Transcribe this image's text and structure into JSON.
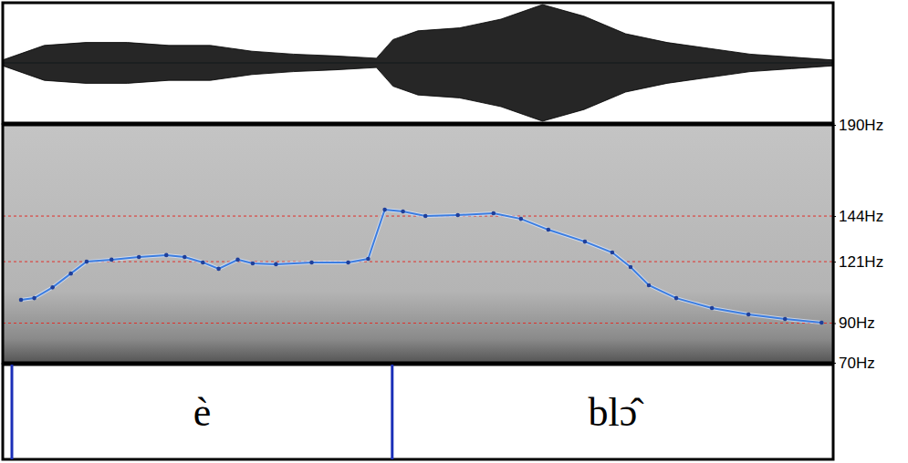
{
  "chart_data": [
    {
      "type": "area",
      "x": [
        0,
        0.05,
        0.1,
        0.15,
        0.2,
        0.25,
        0.3,
        0.35,
        0.4,
        0.45,
        0.47,
        0.5,
        0.55,
        0.6,
        0.65,
        0.7,
        0.75,
        0.8,
        0.85,
        0.9,
        0.95,
        1.0
      ],
      "values": [
        0.05,
        0.3,
        0.35,
        0.35,
        0.3,
        0.3,
        0.2,
        0.15,
        0.12,
        0.08,
        0.4,
        0.55,
        0.6,
        0.75,
        1.0,
        0.8,
        0.5,
        0.35,
        0.25,
        0.15,
        0.1,
        0.05
      ],
      "color": "#000000",
      "xlim": [
        0,
        1
      ],
      "ylim": [
        -1,
        1
      ],
      "tick_labels": false
    },
    {
      "type": "line",
      "x": [
        0.022,
        0.038,
        0.06,
        0.082,
        0.101,
        0.131,
        0.164,
        0.197,
        0.219,
        0.241,
        0.26,
        0.283,
        0.301,
        0.329,
        0.372,
        0.416,
        0.44,
        0.46,
        0.482,
        0.509,
        0.548,
        0.591,
        0.624,
        0.657,
        0.701,
        0.734,
        0.756,
        0.778,
        0.811,
        0.854,
        0.898,
        0.942,
        0.986
      ],
      "series": [
        {
          "color": "#3b7de0",
          "marker": "circle",
          "line_style": "solid",
          "values": [
            101.7,
            102.6,
            108,
            115,
            121,
            122,
            123.3,
            124.3,
            123.3,
            120.6,
            117.4,
            122,
            120.1,
            119.7,
            120.6,
            120.6,
            122.4,
            147.2,
            146.3,
            144,
            144.5,
            145.4,
            142.6,
            137.1,
            131.1,
            125.6,
            118.3,
            109.1,
            102.6,
            97.6,
            94.4,
            92.1,
            90.2
          ]
        }
      ],
      "xlim": [
        0,
        1
      ],
      "ylim": [
        70,
        190
      ],
      "yticks": [
        {
          "value": 190,
          "label": "190Hz"
        },
        {
          "value": 144,
          "label": "144Hz"
        },
        {
          "value": 121,
          "label": "121Hz"
        },
        {
          "value": 90,
          "label": "90Hz"
        },
        {
          "value": 70,
          "label": "70Hz"
        }
      ],
      "grid": true,
      "tick_labels": "y",
      "annotations": [
        {
          "text": "è",
          "start": 0.011,
          "end": 0.469
        },
        {
          "text": "blɔ̂",
          "start": 0.469,
          "end": 1.0
        }
      ]
    }
  ]
}
